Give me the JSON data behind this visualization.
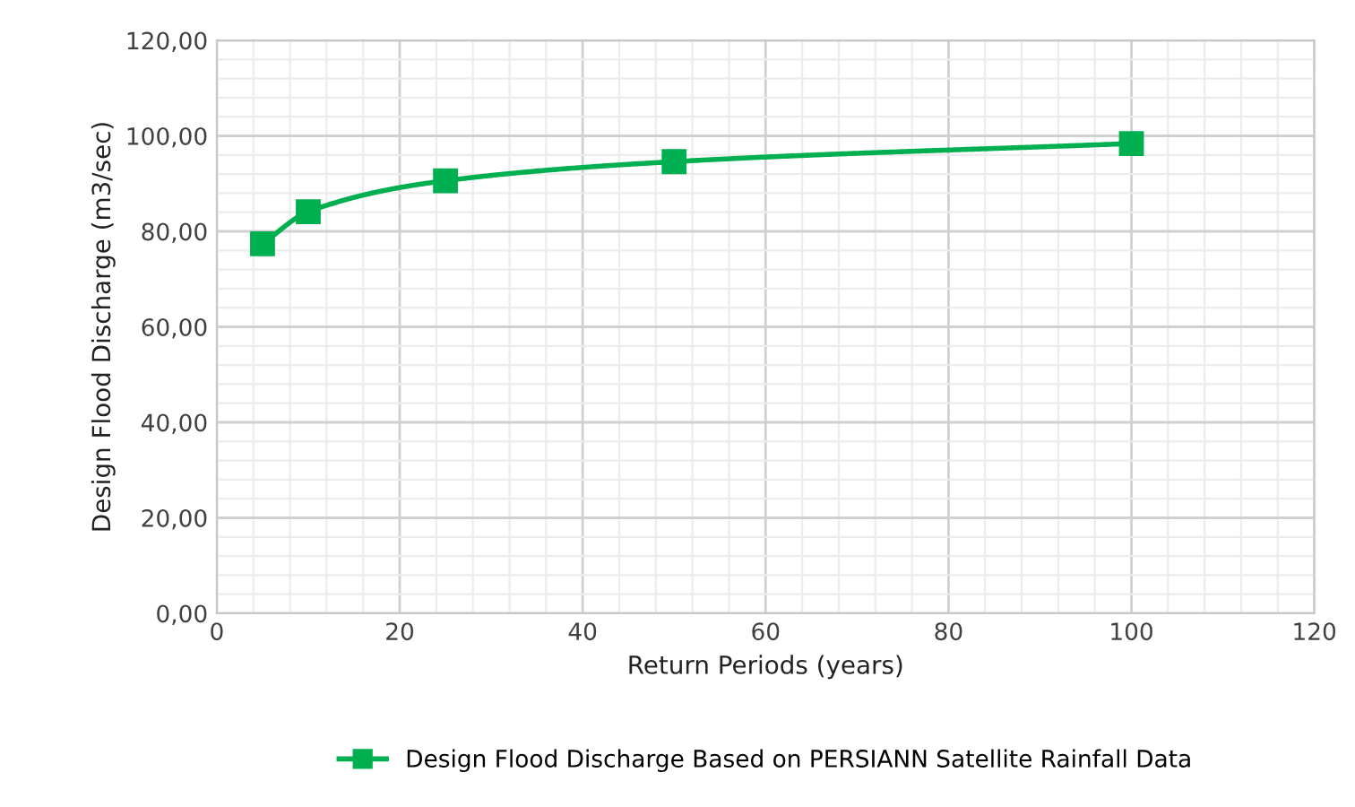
{
  "chart_data": {
    "type": "line",
    "xlabel": "Return Periods (years)",
    "ylabel": "Design Flood Discharge (m3/sec)",
    "x": [
      5,
      10,
      25,
      50,
      100
    ],
    "series": [
      {
        "name": "Design Flood Discharge Based on PERSIANN Satellite Rainfall Data",
        "color": "#00b050",
        "values": [
          77.4,
          84.1,
          90.6,
          94.6,
          98.4
        ]
      }
    ],
    "xlim": [
      0,
      120
    ],
    "xticks": [
      0,
      20,
      40,
      60,
      80,
      100,
      120
    ],
    "ylim": [
      0,
      120
    ],
    "yticks": [
      {
        "value": 0,
        "label": "0,00"
      },
      {
        "value": 20,
        "label": "20,00"
      },
      {
        "value": 40,
        "label": "40,00"
      },
      {
        "value": 60,
        "label": "60,00"
      },
      {
        "value": 80,
        "label": "80,00"
      },
      {
        "value": 100,
        "label": "100,00"
      },
      {
        "value": 120,
        "label": "120,00"
      }
    ],
    "grid": true,
    "legend": "bottom",
    "marker": "square",
    "line_style": "solid"
  }
}
